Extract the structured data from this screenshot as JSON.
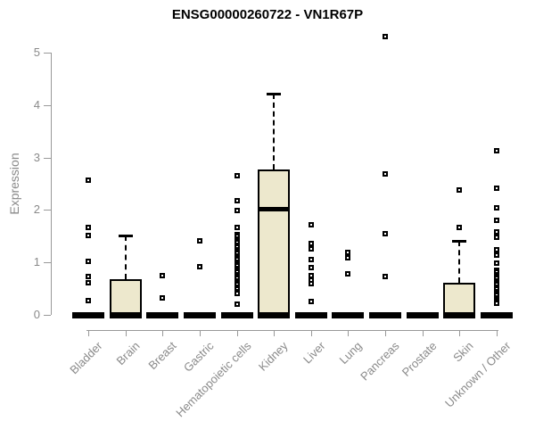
{
  "chart_data": {
    "type": "boxplot",
    "title": "ENSG00000260722 - VN1R67P",
    "xlabel": "",
    "ylabel": "Expression",
    "yticks": [
      0,
      1,
      2,
      3,
      4,
      5
    ],
    "ylim": [
      0,
      5.35
    ],
    "grid": false,
    "legend": "none",
    "box_fill": "#EDE8CD",
    "box_border": "#000000",
    "axis_color": "#999999",
    "label_color": "#8A8A8A",
    "categories": [
      "Bladder",
      "Brain",
      "Breast",
      "Gastric",
      "Hematopoietic cells",
      "Kidney",
      "Liver",
      "Lung",
      "Pancreas",
      "Prostate",
      "Skin",
      "Unknown / Other"
    ],
    "boxes": [
      {
        "category": "Bladder",
        "q1": 0,
        "median": 0,
        "q3": 0,
        "whisker_low": 0,
        "whisker_high": 0,
        "outliers": [
          2.56,
          1.66,
          1.51,
          1.02,
          0.73,
          0.62,
          0.28
        ]
      },
      {
        "category": "Brain",
        "q1": 0,
        "median": 0,
        "q3": 0.68,
        "whisker_low": 0,
        "whisker_high": 1.52,
        "outliers": []
      },
      {
        "category": "Breast",
        "q1": 0,
        "median": 0,
        "q3": 0,
        "whisker_low": 0,
        "whisker_high": 0,
        "outliers": [
          0.75,
          0.32
        ]
      },
      {
        "category": "Gastric",
        "q1": 0,
        "median": 0,
        "q3": 0,
        "whisker_low": 0,
        "whisker_high": 0,
        "outliers": [
          1.41,
          0.92
        ]
      },
      {
        "category": "Hematopoietic cells",
        "q1": 0,
        "median": 0,
        "q3": 0,
        "whisker_low": 0,
        "whisker_high": 0,
        "outliers": [
          2.65,
          2.18,
          1.99,
          1.67,
          1.53,
          1.49,
          1.45,
          1.41,
          1.37,
          1.33,
          1.29,
          1.25,
          1.21,
          1.17,
          1.13,
          1.09,
          1.05,
          1.01,
          0.97,
          0.93,
          0.89,
          0.85,
          0.81,
          0.77,
          0.73,
          0.69,
          0.65,
          0.61,
          0.57,
          0.53,
          0.49,
          0.45,
          0.41,
          0.2
        ]
      },
      {
        "category": "Kidney",
        "q1": 0,
        "median": 2.03,
        "q3": 2.78,
        "whisker_low": 0,
        "whisker_high": 4.22,
        "outliers": []
      },
      {
        "category": "Liver",
        "q1": 0,
        "median": 0,
        "q3": 0,
        "whisker_low": 0,
        "whisker_high": 0,
        "outliers": [
          1.72,
          1.36,
          1.26,
          1.05,
          0.9,
          0.75,
          0.66,
          0.6,
          0.26
        ]
      },
      {
        "category": "Lung",
        "q1": 0,
        "median": 0,
        "q3": 0,
        "whisker_low": 0,
        "whisker_high": 0,
        "outliers": [
          1.19,
          1.09,
          0.78
        ]
      },
      {
        "category": "Pancreas",
        "q1": 0,
        "median": 0,
        "q3": 0,
        "whisker_low": 0,
        "whisker_high": 0,
        "outliers": [
          5.31,
          2.69,
          1.55,
          0.73
        ]
      },
      {
        "category": "Prostate",
        "q1": 0,
        "median": 0,
        "q3": 0,
        "whisker_low": 0,
        "whisker_high": 0,
        "outliers": []
      },
      {
        "category": "Skin",
        "q1": 0,
        "median": 0,
        "q3": 0.62,
        "whisker_low": 0,
        "whisker_high": 1.41,
        "outliers": [
          2.38,
          1.66
        ]
      },
      {
        "category": "Unknown / Other",
        "q1": 0,
        "median": 0,
        "q3": 0,
        "whisker_low": 0,
        "whisker_high": 0,
        "outliers": [
          3.13,
          2.42,
          2.04,
          1.81,
          1.58,
          1.48,
          1.24,
          1.14,
          0.99,
          0.85,
          0.81,
          0.77,
          0.73,
          0.69,
          0.65,
          0.61,
          0.57,
          0.53,
          0.49,
          0.45,
          0.41,
          0.37,
          0.33,
          0.29,
          0.25,
          0.22
        ]
      }
    ]
  }
}
